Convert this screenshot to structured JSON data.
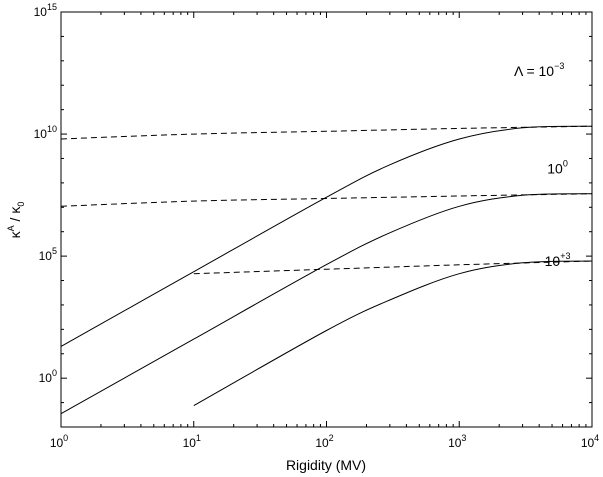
{
  "chart_data": {
    "type": "line",
    "title": "",
    "xlabel": "Rigidity (MV)",
    "ylabel_main": "κ",
    "ylabel_sup": "A",
    "ylabel_mid": " / κ",
    "ylabel_sub": "0",
    "xscale": "log",
    "yscale": "log",
    "xlim": [
      1,
      10000
    ],
    "ylim": [
      0.01,
      1000000000000000.0
    ],
    "grid": false,
    "legend": "none",
    "x_ticks": [
      {
        "value": 1,
        "base": "10",
        "exp": "0"
      },
      {
        "value": 10,
        "base": "10",
        "exp": "1"
      },
      {
        "value": 100,
        "base": "10",
        "exp": "2"
      },
      {
        "value": 1000,
        "base": "10",
        "exp": "3"
      },
      {
        "value": 10000,
        "base": "10",
        "exp": "4"
      }
    ],
    "y_ticks": [
      {
        "value": 1,
        "base": "10",
        "exp": "0"
      },
      {
        "value": 100000,
        "base": "10",
        "exp": "5"
      },
      {
        "value": 10000000000.0,
        "base": "10",
        "exp": "10"
      },
      {
        "value": 1000000000000000.0,
        "base": "10",
        "exp": "15"
      }
    ],
    "annotations": [
      {
        "name": "lambda-neg3",
        "prefix": "Λ = 10",
        "sup": "−3",
        "x": 4000,
        "y": 2400000000000.0
      },
      {
        "name": "lambda-0",
        "prefix": "10",
        "sup": "0",
        "x": 5500,
        "y": 240000000.0
      },
      {
        "name": "lambda-pos3",
        "prefix": "10",
        "sup": "+3",
        "x": 5500,
        "y": 40000.0
      }
    ],
    "series": [
      {
        "name": "solid-lambda-neg3",
        "style": "solid",
        "x": [
          1,
          10,
          100,
          300,
          1000,
          3000,
          10000
        ],
        "y": [
          20,
          23000.0,
          26000000.0,
          550000000.0,
          6300000000.0,
          18000000000.0,
          21000000000.0
        ]
      },
      {
        "name": "dashed-lambda-neg3",
        "style": "dashed",
        "x": [
          1,
          10,
          100,
          1000,
          10000
        ],
        "y": [
          6300000000.0,
          10000000000.0,
          13000000000.0,
          17000000000.0,
          21000000000.0
        ]
      },
      {
        "name": "solid-lambda-0",
        "style": "solid",
        "x": [
          1,
          10,
          100,
          300,
          1000,
          3000,
          10000
        ],
        "y": [
          0.035,
          40,
          45000.0,
          900000.0,
          11000000.0,
          31000000.0,
          36000000.0
        ]
      },
      {
        "name": "dashed-lambda-0",
        "style": "dashed",
        "x": [
          1,
          10,
          100,
          1000,
          10000
        ],
        "y": [
          11000000.0,
          18000000.0,
          23000000.0,
          29000000.0,
          36000000.0
        ]
      },
      {
        "name": "solid-lambda-pos3",
        "style": "solid",
        "x": [
          10,
          100,
          300,
          1000,
          3000,
          10000
        ],
        "y": [
          0.075,
          90,
          1600.0,
          19000.0,
          53000.0,
          63000.0
        ]
      },
      {
        "name": "dashed-lambda-pos3",
        "style": "dashed",
        "x": [
          10,
          100,
          1000,
          10000
        ],
        "y": [
          19000.0,
          29000.0,
          44000.0,
          63000.0
        ]
      }
    ]
  }
}
